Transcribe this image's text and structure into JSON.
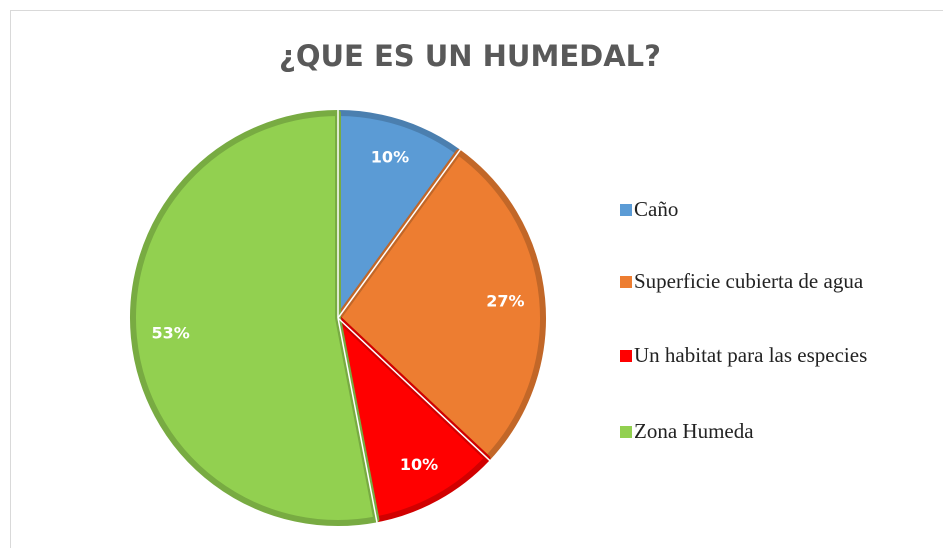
{
  "chart_data": {
    "type": "pie",
    "title": "¿QUE ES UN HUMEDAL?",
    "categories": [
      "Caño",
      "Superficie cubierta de agua",
      "Un habitat para las especies",
      "Zona Humeda"
    ],
    "values": [
      10,
      27,
      10,
      53
    ],
    "value_labels": [
      "10%",
      "27%",
      "10%",
      "53%"
    ],
    "colors": [
      "#5b9bd5",
      "#ed7d31",
      "#ff0000",
      "#92d050"
    ],
    "legend": "right"
  }
}
